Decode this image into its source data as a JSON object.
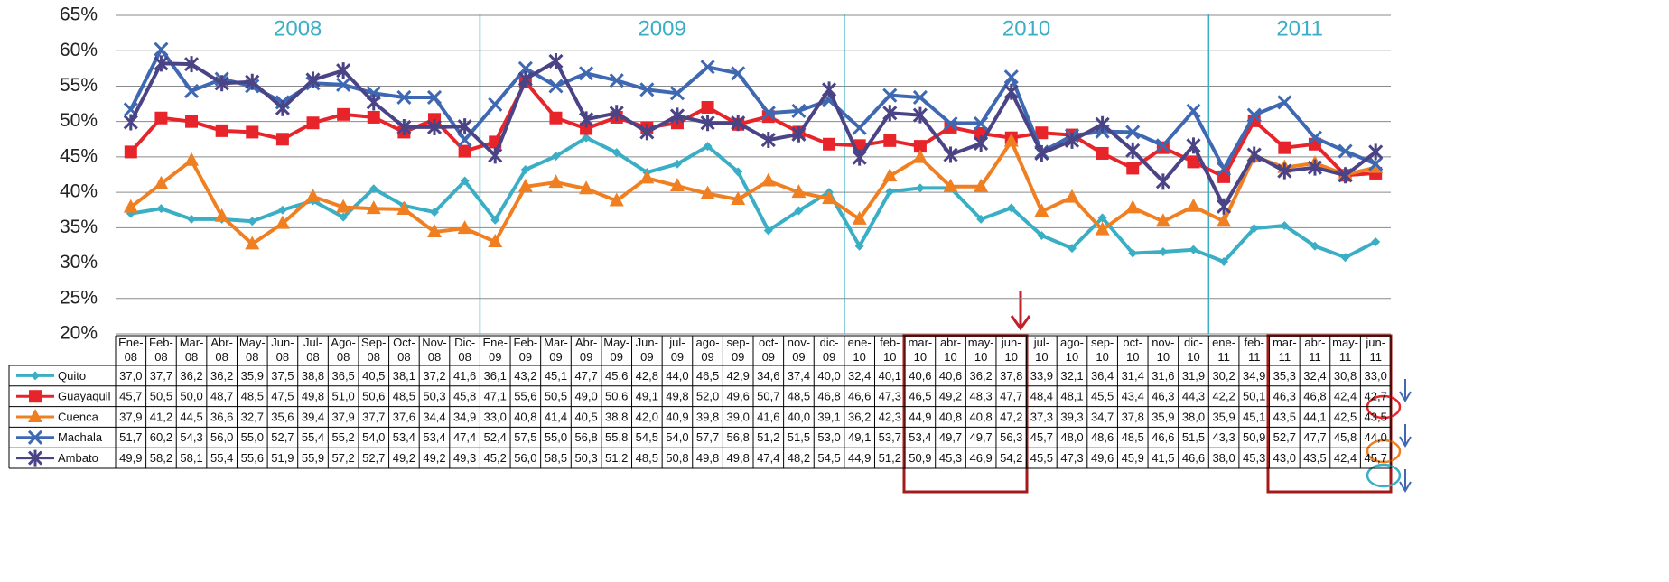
{
  "chart_data": {
    "type": "line",
    "categories": [
      "Ene-08",
      "Feb-08",
      "Mar-08",
      "Abr-08",
      "May-08",
      "Jun-08",
      "Jul-08",
      "Ago-08",
      "Sep-08",
      "Oct-08",
      "Nov-08",
      "Dic-08",
      "Ene-09",
      "Feb-09",
      "Mar-09",
      "Abr-09",
      "May-09",
      "Jun-09",
      "jul-09",
      "ago-09",
      "sep-09",
      "oct-09",
      "nov-09",
      "dic-09",
      "ene-10",
      "feb-10",
      "mar-10",
      "abr-10",
      "may-10",
      "jun-10",
      "jul-10",
      "ago-10",
      "sep-10",
      "oct-10",
      "nov-10",
      "dic-10",
      "ene-11",
      "feb-11",
      "mar-11",
      "abr-11",
      "may-11",
      "jun-11"
    ],
    "annotations": [
      "2008",
      "2009",
      "2010",
      "2011"
    ],
    "ylim": [
      20,
      65
    ],
    "yticks": [
      {
        "value": 20,
        "label": "20%"
      },
      {
        "value": 25,
        "label": "25%"
      },
      {
        "value": 30,
        "label": "30%"
      },
      {
        "value": 35,
        "label": "35%"
      },
      {
        "value": 40,
        "label": "40%"
      },
      {
        "value": 45,
        "label": "45%"
      },
      {
        "value": 50,
        "label": "50%"
      },
      {
        "value": 55,
        "label": "55%"
      },
      {
        "value": 60,
        "label": "60%"
      },
      {
        "value": 65,
        "label": "65%"
      }
    ],
    "grid": true,
    "series": [
      {
        "name": "Quito",
        "color": "#3aaec4",
        "marker": "diamond",
        "values": [
          37.0,
          37.7,
          36.2,
          36.2,
          35.9,
          37.5,
          38.8,
          36.5,
          40.5,
          38.1,
          37.2,
          41.6,
          36.1,
          43.2,
          45.1,
          47.7,
          45.6,
          42.8,
          44.0,
          46.5,
          42.9,
          34.6,
          37.4,
          40.0,
          32.4,
          40.1,
          40.6,
          40.6,
          36.2,
          37.8,
          33.9,
          32.1,
          36.4,
          31.4,
          31.6,
          31.9,
          30.2,
          34.9,
          35.3,
          32.4,
          30.8,
          33.0
        ],
        "value_labels": [
          "37,0",
          "37,7",
          "36,2",
          "36,2",
          "35,9",
          "37,5",
          "38,8",
          "36,5",
          "40,5",
          "38,1",
          "37,2",
          "41,6",
          "36,1",
          "43,2",
          "45,1",
          "47,7",
          "45,6",
          "42,8",
          "44,0",
          "46,5",
          "42,9",
          "34,6",
          "37,4",
          "40,0",
          "32,4",
          "40,1",
          "40,6",
          "40,6",
          "36,2",
          "37,8",
          "33,9",
          "32,1",
          "36,4",
          "31,4",
          "31,6",
          "31,9",
          "30,2",
          "34,9",
          "35,3",
          "32,4",
          "30,8",
          "33,0"
        ]
      },
      {
        "name": "Guayaquil",
        "color": "#e8242b",
        "marker": "square",
        "values": [
          45.7,
          50.5,
          50.0,
          48.7,
          48.5,
          47.5,
          49.8,
          51.0,
          50.6,
          48.5,
          50.3,
          45.8,
          47.1,
          55.6,
          50.5,
          49.0,
          50.6,
          49.1,
          49.8,
          52.0,
          49.6,
          50.7,
          48.5,
          46.8,
          46.6,
          47.3,
          46.5,
          49.2,
          48.3,
          47.7,
          48.4,
          48.1,
          45.5,
          43.4,
          46.3,
          44.3,
          42.2,
          50.1,
          46.3,
          46.8,
          42.4,
          42.7
        ],
        "value_labels": [
          "45,7",
          "50,5",
          "50,0",
          "48,7",
          "48,5",
          "47,5",
          "49,8",
          "51,0",
          "50,6",
          "48,5",
          "50,3",
          "45,8",
          "47,1",
          "55,6",
          "50,5",
          "49,0",
          "50,6",
          "49,1",
          "49,8",
          "52,0",
          "49,6",
          "50,7",
          "48,5",
          "46,8",
          "46,6",
          "47,3",
          "46,5",
          "49,2",
          "48,3",
          "47,7",
          "48,4",
          "48,1",
          "45,5",
          "43,4",
          "46,3",
          "44,3",
          "42,2",
          "50,1",
          "46,3",
          "46,8",
          "42,4",
          "42,7"
        ]
      },
      {
        "name": "Cuenca",
        "color": "#f07f22",
        "marker": "triangle",
        "values": [
          37.9,
          41.2,
          44.5,
          36.6,
          32.7,
          35.6,
          39.4,
          37.9,
          37.7,
          37.6,
          34.4,
          34.9,
          33.0,
          40.8,
          41.4,
          40.5,
          38.8,
          42.0,
          40.9,
          39.8,
          39.0,
          41.6,
          40.0,
          39.1,
          36.2,
          42.3,
          44.9,
          40.8,
          40.8,
          47.2,
          37.3,
          39.3,
          34.7,
          37.8,
          35.9,
          38.0,
          35.9,
          45.1,
          43.5,
          44.1,
          42.5,
          43.5
        ],
        "value_labels": [
          "37,9",
          "41,2",
          "44,5",
          "36,6",
          "32,7",
          "35,6",
          "39,4",
          "37,9",
          "37,7",
          "37,6",
          "34,4",
          "34,9",
          "33,0",
          "40,8",
          "41,4",
          "40,5",
          "38,8",
          "42,0",
          "40,9",
          "39,8",
          "39,0",
          "41,6",
          "40,0",
          "39,1",
          "36,2",
          "42,3",
          "44,9",
          "40,8",
          "40,8",
          "47,2",
          "37,3",
          "39,3",
          "34,7",
          "37,8",
          "35,9",
          "38,0",
          "35,9",
          "45,1",
          "43,5",
          "44,1",
          "42,5",
          "43,5"
        ]
      },
      {
        "name": "Machala",
        "color": "#3f68b3",
        "marker": "x",
        "values": [
          51.7,
          60.2,
          54.3,
          56.0,
          55.0,
          52.7,
          55.4,
          55.2,
          54.0,
          53.4,
          53.4,
          47.4,
          52.4,
          57.5,
          55.0,
          56.8,
          55.8,
          54.5,
          54.0,
          57.7,
          56.8,
          51.2,
          51.5,
          53.0,
          49.1,
          53.7,
          53.4,
          49.7,
          49.7,
          56.3,
          45.7,
          48.0,
          48.6,
          48.5,
          46.6,
          51.5,
          43.3,
          50.9,
          52.7,
          47.7,
          45.8,
          44.0
        ],
        "value_labels": [
          "51,7",
          "60,2",
          "54,3",
          "56,0",
          "55,0",
          "52,7",
          "55,4",
          "55,2",
          "54,0",
          "53,4",
          "53,4",
          "47,4",
          "52,4",
          "57,5",
          "55,0",
          "56,8",
          "55,8",
          "54,5",
          "54,0",
          "57,7",
          "56,8",
          "51,2",
          "51,5",
          "53,0",
          "49,1",
          "53,7",
          "53,4",
          "49,7",
          "49,7",
          "56,3",
          "45,7",
          "48,0",
          "48,6",
          "48,5",
          "46,6",
          "51,5",
          "43,3",
          "50,9",
          "52,7",
          "47,7",
          "45,8",
          "44,0"
        ]
      },
      {
        "name": "Ambato",
        "color": "#4a4486",
        "marker": "star",
        "values": [
          49.9,
          58.2,
          58.1,
          55.4,
          55.6,
          51.9,
          55.9,
          57.2,
          52.7,
          49.2,
          49.2,
          49.3,
          45.2,
          56.0,
          58.5,
          50.3,
          51.2,
          48.5,
          50.8,
          49.8,
          49.8,
          47.4,
          48.2,
          54.5,
          44.9,
          51.2,
          50.9,
          45.3,
          46.9,
          54.2,
          45.5,
          47.3,
          49.6,
          45.9,
          41.5,
          46.6,
          38.0,
          45.3,
          43.0,
          43.5,
          42.4,
          45.7
        ],
        "value_labels": [
          "49,9",
          "58,2",
          "58,1",
          "55,4",
          "55,6",
          "51,9",
          "55,9",
          "57,2",
          "52,7",
          "49,2",
          "49,2",
          "49,3",
          "45,2",
          "56,0",
          "58,5",
          "50,3",
          "51,2",
          "48,5",
          "50,8",
          "49,8",
          "49,8",
          "47,4",
          "48,2",
          "54,5",
          "44,9",
          "51,2",
          "50,9",
          "45,3",
          "46,9",
          "54,2",
          "45,5",
          "47,3",
          "49,6",
          "45,9",
          "41,5",
          "46,6",
          "38,0",
          "45,3",
          "43,0",
          "43,5",
          "42,4",
          "45,7"
        ]
      }
    ]
  }
}
